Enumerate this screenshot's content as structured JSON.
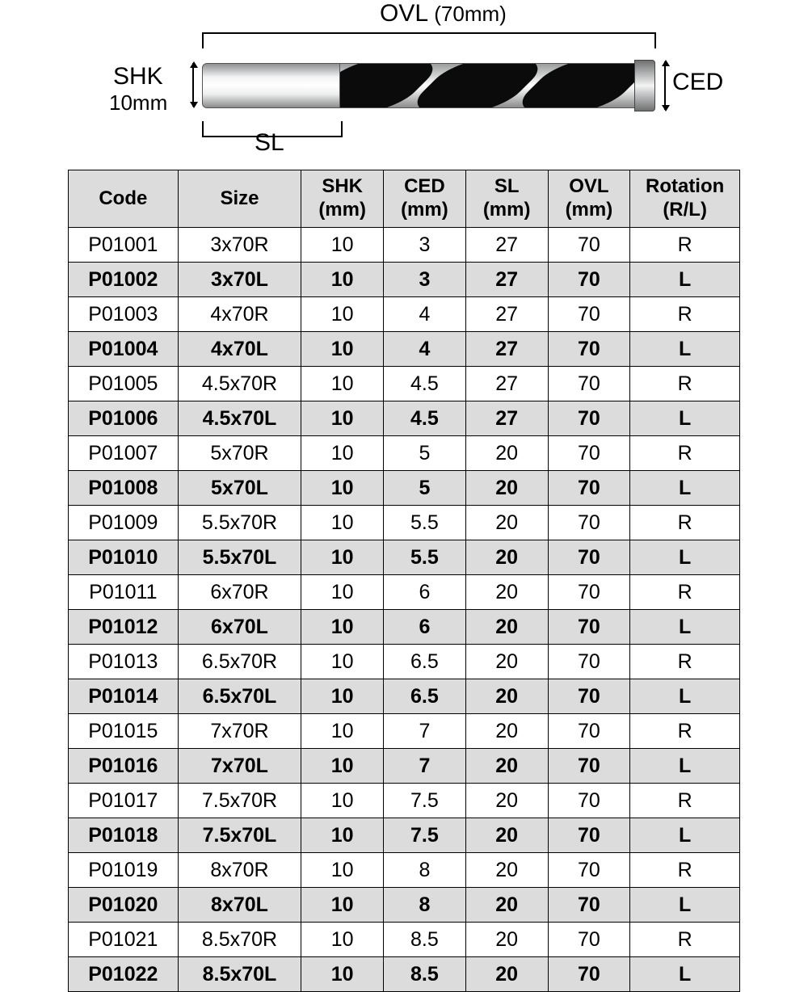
{
  "diagram": {
    "ovl_label": "OVL",
    "ovl_value": "(70mm)",
    "shk_label": "SHK",
    "shk_value": "10mm",
    "sl_label": "SL",
    "ced_label": "CED",
    "drill_colors": {
      "shank_light": "#f2f3f4",
      "shank_dark": "#8a8c8d",
      "flute_black": "#0b0b0b",
      "outline": "#555555"
    }
  },
  "table": {
    "header_bg": "#dcdcdc",
    "alt_row_bg": "#dcdcdc",
    "row_bg": "#ffffff",
    "border_color": "#000000",
    "font_size_header": 24,
    "font_size_cell": 25,
    "columns": [
      {
        "key": "code",
        "label": "Code",
        "sub": ""
      },
      {
        "key": "size",
        "label": "Size",
        "sub": ""
      },
      {
        "key": "shk",
        "label": "SHK",
        "sub": "(mm)"
      },
      {
        "key": "ced",
        "label": "CED",
        "sub": "(mm)"
      },
      {
        "key": "sl",
        "label": "SL",
        "sub": "(mm)"
      },
      {
        "key": "ovl",
        "label": "OVL",
        "sub": "(mm)"
      },
      {
        "key": "rot",
        "label": "Rotation",
        "sub": "(R/L)"
      }
    ],
    "col_widths_pct": [
      16,
      18,
      12,
      12,
      12,
      12,
      16
    ],
    "rows": [
      {
        "code": "P01001",
        "size": "3x70R",
        "shk": "10",
        "ced": "3",
        "sl": "27",
        "ovl": "70",
        "rot": "R"
      },
      {
        "code": "P01002",
        "size": "3x70L",
        "shk": "10",
        "ced": "3",
        "sl": "27",
        "ovl": "70",
        "rot": "L"
      },
      {
        "code": "P01003",
        "size": "4x70R",
        "shk": "10",
        "ced": "4",
        "sl": "27",
        "ovl": "70",
        "rot": "R"
      },
      {
        "code": "P01004",
        "size": "4x70L",
        "shk": "10",
        "ced": "4",
        "sl": "27",
        "ovl": "70",
        "rot": "L"
      },
      {
        "code": "P01005",
        "size": "4.5x70R",
        "shk": "10",
        "ced": "4.5",
        "sl": "27",
        "ovl": "70",
        "rot": "R"
      },
      {
        "code": "P01006",
        "size": "4.5x70L",
        "shk": "10",
        "ced": "4.5",
        "sl": "27",
        "ovl": "70",
        "rot": "L"
      },
      {
        "code": "P01007",
        "size": "5x70R",
        "shk": "10",
        "ced": "5",
        "sl": "20",
        "ovl": "70",
        "rot": "R"
      },
      {
        "code": "P01008",
        "size": "5x70L",
        "shk": "10",
        "ced": "5",
        "sl": "20",
        "ovl": "70",
        "rot": "L"
      },
      {
        "code": "P01009",
        "size": "5.5x70R",
        "shk": "10",
        "ced": "5.5",
        "sl": "20",
        "ovl": "70",
        "rot": "R"
      },
      {
        "code": "P01010",
        "size": "5.5x70L",
        "shk": "10",
        "ced": "5.5",
        "sl": "20",
        "ovl": "70",
        "rot": "L"
      },
      {
        "code": "P01011",
        "size": "6x70R",
        "shk": "10",
        "ced": "6",
        "sl": "20",
        "ovl": "70",
        "rot": "R"
      },
      {
        "code": "P01012",
        "size": "6x70L",
        "shk": "10",
        "ced": "6",
        "sl": "20",
        "ovl": "70",
        "rot": "L"
      },
      {
        "code": "P01013",
        "size": "6.5x70R",
        "shk": "10",
        "ced": "6.5",
        "sl": "20",
        "ovl": "70",
        "rot": "R"
      },
      {
        "code": "P01014",
        "size": "6.5x70L",
        "shk": "10",
        "ced": "6.5",
        "sl": "20",
        "ovl": "70",
        "rot": "L"
      },
      {
        "code": "P01015",
        "size": "7x70R",
        "shk": "10",
        "ced": "7",
        "sl": "20",
        "ovl": "70",
        "rot": "R"
      },
      {
        "code": "P01016",
        "size": "7x70L",
        "shk": "10",
        "ced": "7",
        "sl": "20",
        "ovl": "70",
        "rot": "L"
      },
      {
        "code": "P01017",
        "size": "7.5x70R",
        "shk": "10",
        "ced": "7.5",
        "sl": "20",
        "ovl": "70",
        "rot": "R"
      },
      {
        "code": "P01018",
        "size": "7.5x70L",
        "shk": "10",
        "ced": "7.5",
        "sl": "20",
        "ovl": "70",
        "rot": "L"
      },
      {
        "code": "P01019",
        "size": "8x70R",
        "shk": "10",
        "ced": "8",
        "sl": "20",
        "ovl": "70",
        "rot": "R"
      },
      {
        "code": "P01020",
        "size": "8x70L",
        "shk": "10",
        "ced": "8",
        "sl": "20",
        "ovl": "70",
        "rot": "L"
      },
      {
        "code": "P01021",
        "size": "8.5x70R",
        "shk": "10",
        "ced": "8.5",
        "sl": "20",
        "ovl": "70",
        "rot": "R"
      },
      {
        "code": "P01022",
        "size": "8.5x70L",
        "shk": "10",
        "ced": "8.5",
        "sl": "20",
        "ovl": "70",
        "rot": "L"
      }
    ]
  }
}
